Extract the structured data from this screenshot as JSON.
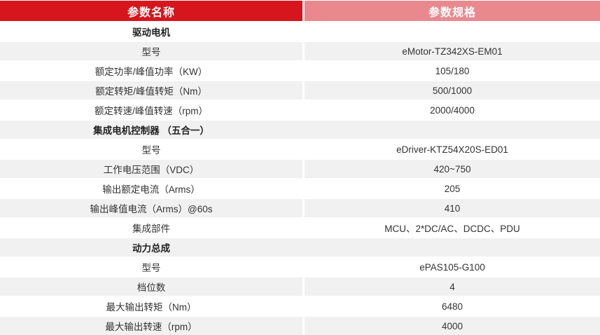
{
  "header": {
    "left_label": "参数名称",
    "right_label": "参数规格"
  },
  "colors": {
    "header_left_bg": "#d7151d",
    "header_right_bg": "#e9898e",
    "stripe_bg": "#f1f1f2",
    "body_text": "#333333",
    "header_text": "#ffffff"
  },
  "rows": [
    {
      "type": "section",
      "name": "驱动电机"
    },
    {
      "type": "data",
      "name": "型号",
      "value": "eMotor-TZ342XS-EM01"
    },
    {
      "type": "data",
      "name": "额定功率/峰值功率（KW）",
      "value": "105/180"
    },
    {
      "type": "data",
      "name": "额定转矩/峰值转矩（Nm）",
      "value": "500/1000"
    },
    {
      "type": "data",
      "name": "额定转速/峰值转速（rpm）",
      "value": "2000/4000"
    },
    {
      "type": "section",
      "name": "集成电机控制器 （五合一）"
    },
    {
      "type": "data",
      "name": "型号",
      "value": "eDriver-KTZ54X20S-ED01"
    },
    {
      "type": "data",
      "name": "工作电压范围（VDC）",
      "value": "420~750"
    },
    {
      "type": "data",
      "name": "输出额定电流（Arms）",
      "value": "205"
    },
    {
      "type": "data",
      "name": "输出峰值电流（Arms）@60s",
      "value": "410"
    },
    {
      "type": "data",
      "name": "集成部件",
      "value": "MCU、2*DC/AC、DCDC、PDU"
    },
    {
      "type": "section",
      "name": "动力总成"
    },
    {
      "type": "data",
      "name": "型号",
      "value": "ePAS105-G100"
    },
    {
      "type": "data",
      "name": "档位数",
      "value": "4"
    },
    {
      "type": "data",
      "name": "最大输出转矩（Nm）",
      "value": "6480"
    },
    {
      "type": "data",
      "name": "最大输出转速（rpm）",
      "value": "4000"
    }
  ]
}
